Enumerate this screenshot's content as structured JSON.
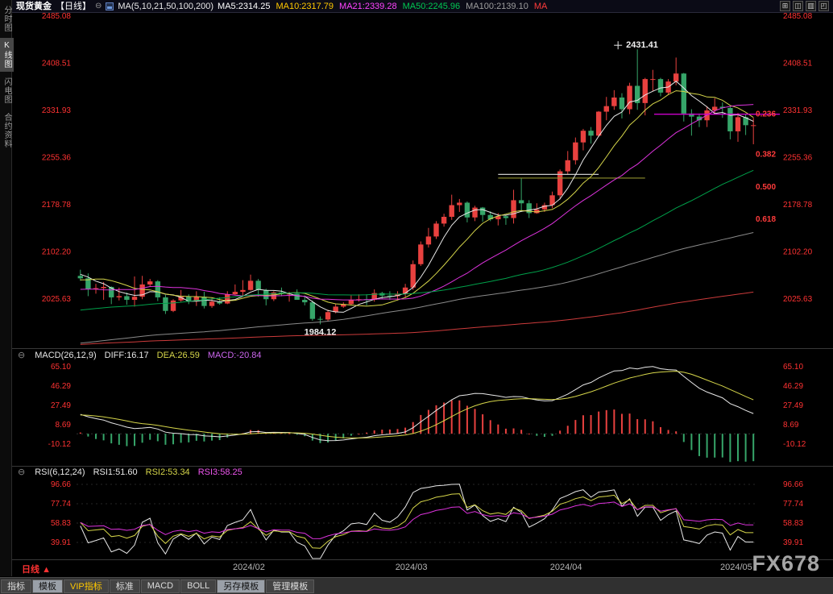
{
  "app": {
    "watermark": "FX678"
  },
  "sidebar": {
    "items": [
      {
        "label": "分时图",
        "key": "timeshare",
        "selected": false
      },
      {
        "label": "K线图",
        "key": "kline",
        "selected": true
      },
      {
        "label": "闪电图",
        "key": "lightning",
        "selected": false
      },
      {
        "label": "合约资料",
        "key": "contract-info",
        "selected": false
      }
    ]
  },
  "header": {
    "symbol": "现货黄金",
    "period": "【日线】",
    "collapse_icon": "⊖",
    "ma_group": "MA(5,10,21,50,100,200)",
    "ma_values": [
      {
        "text": "MA5:2314.25",
        "color": "#ffffff"
      },
      {
        "text": "MA10:2317.79",
        "color": "#ffc800"
      },
      {
        "text": "MA21:2339.28",
        "color": "#ff44ff"
      },
      {
        "text": "MA50:2245.96",
        "color": "#00c853"
      },
      {
        "text": "MA100:2139.10",
        "color": "#9e9e9e"
      },
      {
        "text": "MA",
        "color": "#ff3b3b"
      }
    ],
    "window_icons": [
      {
        "glyph": "⊞",
        "name": "layout-grid-icon"
      },
      {
        "glyph": "◫",
        "name": "layout-split-vertical-icon"
      },
      {
        "glyph": "▥",
        "name": "layout-rows-icon"
      },
      {
        "glyph": "◰",
        "name": "layout-quad-icon"
      }
    ]
  },
  "macd_panel": {
    "labels": [
      {
        "text": "MACD(26,12,9)",
        "color": "#e8e8e8"
      },
      {
        "text": "DIFF:16.17",
        "color": "#e8e8e8"
      },
      {
        "text": "DEA:26.59",
        "color": "#d6d64a"
      },
      {
        "text": "MACD:-20.84",
        "color": "#cc66ee"
      }
    ]
  },
  "rsi_panel": {
    "labels": [
      {
        "text": "RSI(6,12,24)",
        "color": "#e8e8e8"
      },
      {
        "text": "RSI1:51.60",
        "color": "#e8e8e8"
      },
      {
        "text": "RSI2:53.34",
        "color": "#d6d64a"
      },
      {
        "text": "RSI3:58.25",
        "color": "#ee55ee"
      }
    ]
  },
  "footer": {
    "period_label": "日线",
    "period_arrow": "▲",
    "toolbar": [
      {
        "label": "指标",
        "key": "indicators",
        "selected": false,
        "vip": false
      },
      {
        "label": "模板",
        "key": "templates",
        "selected": true,
        "vip": false
      },
      {
        "label": "VIP指标",
        "key": "vip-indicators",
        "selected": false,
        "vip": true
      },
      {
        "label": "标准",
        "key": "standard",
        "selected": false,
        "vip": false
      },
      {
        "label": "MACD",
        "key": "macd",
        "selected": false,
        "vip": false
      },
      {
        "label": "BOLL",
        "key": "boll",
        "selected": false,
        "vip": false
      },
      {
        "label": "另存模板",
        "key": "save-template",
        "selected": true,
        "vip": false
      },
      {
        "label": "管理模板",
        "key": "manage-template",
        "selected": false,
        "vip": false
      }
    ]
  },
  "chart_data": {
    "type": "candlestick",
    "title": "现货黄金【日线】",
    "axis_color": "#ff3232",
    "up_color": "#e8413f",
    "down_color": "#36a569",
    "y_ticks_main": [
      2485.08,
      2408.51,
      2331.93,
      2255.36,
      2178.78,
      2102.2,
      2025.63
    ],
    "x_ticks": [
      {
        "label": "2024/02",
        "index": 22
      },
      {
        "label": "2024/03",
        "index": 43
      },
      {
        "label": "2024/04",
        "index": 63
      },
      {
        "label": "2024/05",
        "index": 85
      }
    ],
    "candles_ohlc": [
      [
        2063,
        2073,
        2055,
        2059
      ],
      [
        2059,
        2067,
        2030,
        2041
      ],
      [
        2041,
        2050,
        2034,
        2043
      ],
      [
        2043,
        2053,
        2024,
        2045
      ],
      [
        2045,
        2046,
        2017,
        2028
      ],
      [
        2028,
        2044,
        2023,
        2030
      ],
      [
        2030,
        2036,
        2016,
        2024
      ],
      [
        2024,
        2062,
        2013,
        2029
      ],
      [
        2029,
        2063,
        2025,
        2049
      ],
      [
        2049,
        2058,
        2045,
        2054
      ],
      [
        2054,
        2056,
        2022,
        2028
      ],
      [
        2028,
        2032,
        2001,
        2006
      ],
      [
        2006,
        2025,
        2004,
        2023
      ],
      [
        2023,
        2040,
        2021,
        2029
      ],
      [
        2029,
        2033,
        2017,
        2022
      ],
      [
        2022,
        2038,
        2014,
        2029
      ],
      [
        2029,
        2037,
        2010,
        2014
      ],
      [
        2014,
        2027,
        2011,
        2021
      ],
      [
        2021,
        2028,
        2016,
        2018
      ],
      [
        2018,
        2038,
        2017,
        2033
      ],
      [
        2033,
        2049,
        2031,
        2037
      ],
      [
        2037,
        2056,
        2030,
        2040
      ],
      [
        2040,
        2065,
        2039,
        2055
      ],
      [
        2055,
        2058,
        2029,
        2040
      ],
      [
        2040,
        2042,
        2015,
        2025
      ],
      [
        2025,
        2038,
        2022,
        2036
      ],
      [
        2036,
        2044,
        2030,
        2034
      ],
      [
        2034,
        2037,
        2021,
        2034
      ],
      [
        2034,
        2041,
        2024,
        2024
      ],
      [
        2024,
        2031,
        2015,
        2020
      ],
      [
        2020,
        2023,
        1990,
        1993
      ],
      [
        1993,
        1997,
        1984.12,
        1992
      ],
      [
        1992,
        2008,
        1989,
        2004
      ],
      [
        2004,
        2017,
        2002,
        2013
      ],
      [
        2013,
        2020,
        2011,
        2017
      ],
      [
        2017,
        2031,
        2015,
        2024
      ],
      [
        2024,
        2033,
        2021,
        2025
      ],
      [
        2025,
        2033,
        2015,
        2024
      ],
      [
        2024,
        2041,
        2021,
        2035
      ],
      [
        2035,
        2037,
        2025,
        2031
      ],
      [
        2031,
        2038,
        2024,
        2030
      ],
      [
        2030,
        2038,
        2023,
        2034
      ],
      [
        2034,
        2050,
        2027,
        2044
      ],
      [
        2044,
        2088,
        2040,
        2082
      ],
      [
        2082,
        2119,
        2079,
        2114
      ],
      [
        2114,
        2141,
        2109,
        2127
      ],
      [
        2127,
        2152,
        2123,
        2148
      ],
      [
        2148,
        2164,
        2143,
        2159
      ],
      [
        2159,
        2195,
        2154,
        2178
      ],
      [
        2178,
        2188,
        2167,
        2182
      ],
      [
        2182,
        2184,
        2150,
        2158
      ],
      [
        2158,
        2177,
        2152,
        2174
      ],
      [
        2174,
        2175,
        2151,
        2162
      ],
      [
        2162,
        2168,
        2152,
        2155
      ],
      [
        2155,
        2165,
        2145,
        2160
      ],
      [
        2160,
        2161,
        2146,
        2157
      ],
      [
        2157,
        2203,
        2148,
        2186
      ],
      [
        2186,
        2222,
        2167,
        2181
      ],
      [
        2181,
        2186,
        2157,
        2165
      ],
      [
        2165,
        2181,
        2164,
        2171
      ],
      [
        2171,
        2182,
        2167,
        2178
      ],
      [
        2178,
        2200,
        2173,
        2194
      ],
      [
        2194,
        2236,
        2187,
        2233
      ],
      [
        2233,
        2266,
        2228,
        2251
      ],
      [
        2251,
        2288,
        2244,
        2280
      ],
      [
        2280,
        2302,
        2267,
        2299
      ],
      [
        2299,
        2305,
        2278,
        2291
      ],
      [
        2291,
        2331,
        2289,
        2330
      ],
      [
        2330,
        2354,
        2316,
        2339
      ],
      [
        2339,
        2365,
        2333,
        2353
      ],
      [
        2353,
        2360,
        2319,
        2334
      ],
      [
        2334,
        2377,
        2326,
        2372
      ],
      [
        2372,
        2431.41,
        2333,
        2344
      ],
      [
        2344,
        2385,
        2324,
        2383
      ],
      [
        2383,
        2398,
        2363,
        2383
      ],
      [
        2383,
        2385,
        2355,
        2361
      ],
      [
        2361,
        2383,
        2358,
        2379
      ],
      [
        2379,
        2418,
        2373,
        2392
      ],
      [
        2392,
        2393,
        2314,
        2327
      ],
      [
        2327,
        2334,
        2291,
        2322
      ],
      [
        2322,
        2327,
        2305,
        2316
      ],
      [
        2316,
        2339,
        2305,
        2332
      ],
      [
        2332,
        2352,
        2325,
        2338
      ],
      [
        2338,
        2345,
        2320,
        2336
      ],
      [
        2336,
        2339,
        2285,
        2298
      ],
      [
        2298,
        2328,
        2281,
        2321
      ],
      [
        2321,
        2326,
        2292,
        2308
      ],
      [
        2308,
        2320,
        2277,
        2308
      ]
    ],
    "prehistory_closes": [
      1921,
      1925,
      1910,
      1911,
      1925,
      1931,
      1932,
      1958,
      1960,
      1955,
      1962,
      1978,
      1969,
      1973,
      1962,
      1965,
      1961,
      1972,
      1945,
      1950,
      1965,
      1944,
      1938,
      1934,
      1942,
      1936,
      1939,
      1925,
      1914,
      1913,
      1912,
      1914,
      1904,
      1888,
      1892,
      1889,
      1895,
      1905,
      1915,
      1915,
      1920,
      1937,
      1948,
      1940,
      1946,
      1939,
      1926,
      1919,
      1925,
      1919,
      1918,
      1922,
      1914,
      1910,
      1932,
      1931,
      1930,
      1925,
      1919,
      1915,
      1900,
      1875,
      1873,
      1865,
      1848,
      1828,
      1823,
      1820,
      1821,
      1833,
      1861,
      1860,
      1874,
      1876,
      1869,
      1892,
      1933,
      1920,
      1923,
      1948,
      1972,
      1985,
      1981,
      1975,
      1996,
      1983,
      1994,
      1992,
      1986,
      1978,
      1985,
      1992,
      1969,
      1950,
      1958,
      1961,
      1946,
      1963,
      1981,
      1977,
      1962,
      1990,
      1999,
      1993,
      1989,
      2014,
      2010,
      2007,
      2013,
      2036,
      2042,
      2069,
      2029,
      2019,
      2025,
      2028,
      2004,
      1996,
      2020,
      2030,
      2040,
      2032,
      2044,
      2054,
      2067,
      2064,
      2076,
      2066,
      2063
    ],
    "ma_periods": [
      5,
      10,
      21,
      50,
      100,
      200
    ],
    "ma_colors": [
      "#e8e8e8",
      "#d6d64a",
      "#dd33dd",
      "#00a04a",
      "#8a8a8a",
      "#cc3b3b"
    ],
    "ma_current": {
      "MA5": 2314.25,
      "MA10": 2317.79,
      "MA21": 2339.28,
      "MA50": 2245.96,
      "MA100": 2139.1
    },
    "annotations": {
      "high_label": "2431.41",
      "high_index": 72,
      "low_label": "1984.12",
      "low_index": 31
    },
    "fib": {
      "high": 2431.41,
      "low": 1984.12,
      "levels": [
        0.236,
        0.382,
        0.5,
        0.618
      ],
      "labels": [
        "0.236",
        "0.382",
        "0.500",
        "0.618"
      ],
      "color": "#ff3b3b",
      "line_level": 0.236,
      "line_color": "#cc00cc"
    },
    "segments": [
      {
        "price": 2228,
        "i1": 54,
        "i2": 67,
        "color": "#c8c8c8"
      },
      {
        "price": 2222,
        "i1": 54,
        "i2": 73,
        "color": "#8f8f2e"
      }
    ],
    "macd": {
      "params": [
        26,
        12,
        9
      ],
      "diff": 16.17,
      "dea": 26.59,
      "macd": -20.84,
      "y_ticks": [
        65.1,
        46.29,
        27.49,
        8.69,
        -10.12
      ],
      "diff_color": "#e8e8e8",
      "dea_color": "#d6d64a",
      "up_color": "#e8413f",
      "down_color": "#36a569"
    },
    "rsi": {
      "params": [
        6,
        12,
        24
      ],
      "values": [
        51.6,
        53.34,
        58.25
      ],
      "y_ticks": [
        96.66,
        77.74,
        58.83,
        39.91
      ],
      "colors": [
        "#e8e8e8",
        "#d6d64a",
        "#dd33dd"
      ]
    }
  }
}
